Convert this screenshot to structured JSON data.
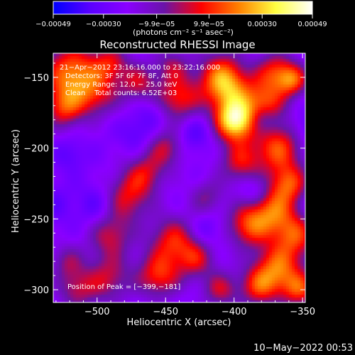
{
  "chart_data": {
    "type": "heatmap",
    "title": "Reconstructed RHESSI Image",
    "xlabel": "Heliocentric X (arcsec)",
    "ylabel": "Heliocentric Y (arcsec)",
    "xlim": [
      -532,
      -348
    ],
    "ylim": [
      -309,
      -133
    ],
    "x_ticks": [
      -500,
      -450,
      -400,
      -350
    ],
    "x_tick_labels": [
      "−500",
      "−450",
      "−400",
      "−350"
    ],
    "y_ticks": [
      -150,
      -200,
      -250,
      -300
    ],
    "y_tick_labels": [
      "−150",
      "−200",
      "−250",
      "−300"
    ],
    "colorbar": {
      "min": -0.00049,
      "max": 0.00049,
      "ticks": [
        -0.00049,
        -0.0003,
        -9.9e-05,
        9.9e-05,
        0.0003,
        0.00049
      ],
      "tick_labels": [
        "−0.00049",
        "−0.00030",
        "−9.9e−05",
        "9.9e−05",
        "0.00030",
        "0.00049"
      ],
      "unit_label": "(photons cm⁻² s⁻¹ asec⁻²)",
      "colors": [
        "#0000ff",
        "#5a00ff",
        "#8a00ff",
        "#6a14a8",
        "#ff0000",
        "#ff8000",
        "#ffff40",
        "#ffffff"
      ]
    },
    "annotations": [
      "21−Apr−2012 23:16:16.000 to 23:22:16.000",
      "Detectors: 3F 5F 6F 7F 8F, Att 0",
      "Energy Range: 12.0 − 25.0 keV",
      "Clean    Total counts: 6.52E+03"
    ],
    "peak_label": "Position of Peak = [−399,−181]",
    "peak": [
      -399,
      -181
    ],
    "field": {
      "base": -0.00024,
      "blobs": [
        [
          -518,
          -148,
          15,
          0.00044
        ],
        [
          -524,
          -172,
          10,
          0.00028
        ],
        [
          -500,
          -162,
          11,
          0.00022
        ],
        [
          -490,
          -140,
          9,
          0.00024
        ],
        [
          -470,
          -154,
          10,
          0.00025
        ],
        [
          -445,
          -142,
          9,
          0.0002
        ],
        [
          -440,
          -165,
          11,
          0.00032
        ],
        [
          -410,
          -148,
          12,
          0.0003
        ],
        [
          -399,
          -181,
          10,
          0.0006
        ],
        [
          -404,
          -160,
          12,
          0.00033
        ],
        [
          -378,
          -168,
          11,
          0.00035
        ],
        [
          -370,
          -146,
          10,
          0.0003
        ],
        [
          -357,
          -152,
          8,
          0.00033
        ],
        [
          -395,
          -210,
          11,
          0.00028
        ],
        [
          -368,
          -200,
          12,
          0.00036
        ],
        [
          -360,
          -225,
          10,
          0.00034
        ],
        [
          -372,
          -245,
          12,
          0.00036
        ],
        [
          -390,
          -255,
          11,
          0.00032
        ],
        [
          -355,
          -262,
          11,
          0.00032
        ],
        [
          -368,
          -285,
          12,
          0.00038
        ],
        [
          -352,
          -300,
          9,
          0.00032
        ],
        [
          -382,
          -298,
          10,
          0.0003
        ],
        [
          -410,
          -300,
          9,
          0.00025
        ],
        [
          -445,
          -265,
          12,
          0.0003
        ],
        [
          -455,
          -290,
          11,
          0.00033
        ],
        [
          -428,
          -278,
          10,
          0.00026
        ],
        [
          -478,
          -235,
          12,
          0.00028
        ],
        [
          -465,
          -218,
          10,
          0.00024
        ],
        [
          -450,
          -200,
          10,
          0.00024
        ],
        [
          -490,
          -262,
          11,
          0.00025
        ],
        [
          -492,
          -292,
          12,
          0.00025
        ],
        [
          -515,
          -300,
          10,
          0.00022
        ],
        [
          -522,
          -280,
          9,
          0.00018
        ],
        [
          -420,
          -235,
          9,
          0.00018
        ],
        [
          -520,
          -205,
          8,
          -0.0001
        ],
        [
          -470,
          -190,
          9,
          -0.0001
        ],
        [
          -430,
          -190,
          9,
          -0.00012
        ],
        [
          -500,
          -240,
          10,
          -0.00012
        ],
        [
          -420,
          -258,
          9,
          -0.0001
        ],
        [
          -380,
          -180,
          7,
          -0.00016
        ],
        [
          -385,
          -230,
          8,
          -0.00014
        ],
        [
          -345,
          -185,
          8,
          -0.00012
        ],
        [
          -340,
          -240,
          8,
          -0.0001
        ],
        [
          -460,
          -175,
          8,
          -8e-05
        ],
        [
          -530,
          -240,
          9,
          -8e-05
        ]
      ]
    }
  },
  "timestamp": "10−May−2022 00:53"
}
